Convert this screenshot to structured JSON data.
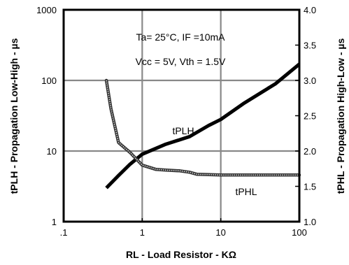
{
  "chart_data": {
    "type": "line",
    "x_axis": {
      "label": "RL  -  Load Resistor - KΩ",
      "scale": "log",
      "range": [
        0.1,
        100
      ],
      "ticks": [
        0.1,
        1,
        10,
        100
      ],
      "tick_labels": [
        ".1",
        "1",
        "10",
        "100"
      ]
    },
    "y_axis_left": {
      "label": "tPLH - Propagation Low-High - µs",
      "scale": "log",
      "range": [
        1,
        1000
      ],
      "ticks": [
        1,
        10,
        100,
        1000
      ],
      "tick_labels": [
        "1",
        "10",
        "100",
        "1000"
      ]
    },
    "y_axis_right": {
      "label": "tPHL -  Propagation High-Low - µs",
      "scale": "linear",
      "range": [
        1.0,
        4.0
      ],
      "ticks": [
        1.0,
        1.5,
        2.0,
        2.5,
        3.0,
        3.5,
        4.0
      ],
      "tick_labels": [
        "1.0",
        "1.5",
        "2.0",
        "2.5",
        "3.0",
        "3.5",
        "4.0"
      ]
    },
    "grid": true,
    "annotations": [
      "Ta= 25°C,  IF =10mA",
      "Vcc = 5V, Vth = 1.5V"
    ],
    "series": [
      {
        "name": "tPLH",
        "axis": "left",
        "color": "#000000",
        "x": [
          0.35,
          0.5,
          0.7,
          1,
          2,
          4,
          7,
          10,
          20,
          50,
          100
        ],
        "y": [
          3,
          4.5,
          6.5,
          9,
          12.5,
          16,
          23,
          28,
          48,
          90,
          170
        ]
      },
      {
        "name": "tPHL",
        "axis": "right",
        "color": "#555555",
        "x": [
          0.35,
          0.4,
          0.5,
          0.7,
          1,
          1.5,
          2,
          3,
          4,
          5,
          10,
          20,
          50,
          100
        ],
        "y": [
          3.0,
          2.6,
          2.12,
          1.98,
          1.8,
          1.74,
          1.73,
          1.72,
          1.7,
          1.67,
          1.66,
          1.66,
          1.66,
          1.66
        ]
      }
    ]
  }
}
